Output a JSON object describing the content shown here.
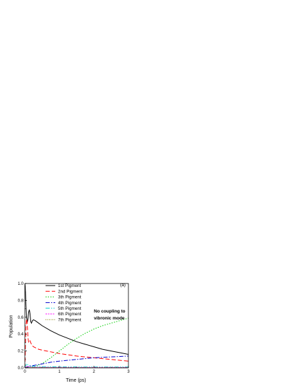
{
  "chart_data": {
    "type": "line",
    "xlabel": "Time (ps)",
    "ylabel": "Population",
    "xlim": [
      0,
      3
    ],
    "ylim": [
      0,
      1.0
    ],
    "xticks": [
      "0",
      "1",
      "2",
      "3"
    ],
    "yticks": [
      "0.0",
      "0.2",
      "0.4",
      "0.6",
      "0.8",
      "1.0"
    ],
    "panel_label": "(a)",
    "annotation": [
      "No coupling to",
      "vibronic mode"
    ],
    "legend_position": "top-center",
    "series": [
      {
        "name": "1st Pigment",
        "color": "#000000",
        "dash": "solid",
        "x": [
          0,
          0.01,
          0.02,
          0.03,
          0.05,
          0.07,
          0.09,
          0.11,
          0.13,
          0.15,
          0.17,
          0.19,
          0.22,
          0.25,
          0.3,
          0.4,
          0.5,
          0.75,
          1.0,
          1.25,
          1.5,
          1.75,
          2.0,
          2.25,
          2.5,
          2.75,
          3.0
        ],
        "y": [
          1.0,
          0.97,
          0.88,
          0.76,
          0.6,
          0.54,
          0.58,
          0.66,
          0.69,
          0.64,
          0.55,
          0.53,
          0.56,
          0.57,
          0.56,
          0.53,
          0.5,
          0.44,
          0.39,
          0.35,
          0.31,
          0.28,
          0.25,
          0.22,
          0.2,
          0.18,
          0.16
        ]
      },
      {
        "name": "2nd Pigment",
        "color": "#ff0000",
        "dash": "6,3",
        "x": [
          0,
          0.01,
          0.02,
          0.03,
          0.05,
          0.07,
          0.09,
          0.11,
          0.13,
          0.15,
          0.17,
          0.2,
          0.25,
          0.3,
          0.4,
          0.5,
          0.75,
          1.0,
          1.5,
          2.0,
          2.5,
          3.0
        ],
        "y": [
          0.0,
          0.15,
          0.32,
          0.48,
          0.58,
          0.52,
          0.36,
          0.3,
          0.3,
          0.32,
          0.3,
          0.27,
          0.25,
          0.24,
          0.22,
          0.21,
          0.19,
          0.17,
          0.14,
          0.12,
          0.1,
          0.08
        ]
      },
      {
        "name": "3th Pigment",
        "color": "#00cc00",
        "dash": "1.5,2",
        "x": [
          0,
          0.25,
          0.5,
          0.75,
          1.0,
          1.25,
          1.5,
          1.75,
          2.0,
          2.25,
          2.5,
          2.75,
          3.0
        ],
        "y": [
          0.0,
          0.01,
          0.05,
          0.12,
          0.2,
          0.28,
          0.35,
          0.41,
          0.46,
          0.5,
          0.53,
          0.56,
          0.59
        ]
      },
      {
        "name": "4th Pigment",
        "color": "#0000cc",
        "dash": "6,2,1.5,2",
        "x": [
          0,
          0.05,
          0.1,
          0.2,
          0.4,
          0.6,
          0.8,
          1.0,
          1.25,
          1.5,
          1.75,
          2.0,
          2.25,
          2.5,
          2.75,
          3.0
        ],
        "y": [
          0.0,
          0.005,
          0.015,
          0.025,
          0.04,
          0.055,
          0.07,
          0.08,
          0.09,
          0.1,
          0.11,
          0.12,
          0.125,
          0.13,
          0.135,
          0.14
        ]
      },
      {
        "name": "5th Pigment",
        "color": "#00cccc",
        "dash": "6,2,1.5,2,1.5,2",
        "x": [
          0,
          0.05,
          0.1,
          0.2,
          0.5,
          1.0,
          2.0,
          3.0
        ],
        "y": [
          0.0,
          0.05,
          0.03,
          0.02,
          0.015,
          0.012,
          0.01,
          0.01
        ]
      },
      {
        "name": "6th Pigment",
        "color": "#ff00ff",
        "dash": "2,1.5",
        "x": [
          0,
          0.05,
          0.1,
          0.2,
          0.5,
          1.0,
          2.0,
          3.0
        ],
        "y": [
          0.0,
          0.02,
          0.012,
          0.008,
          0.006,
          0.005,
          0.005,
          0.005
        ]
      },
      {
        "name": "7th Pigment",
        "color": "#808000",
        "dash": "1,1.5",
        "x": [
          0,
          0.05,
          0.1,
          0.2,
          0.5,
          1.0,
          2.0,
          3.0
        ],
        "y": [
          0.0,
          0.01,
          0.007,
          0.005,
          0.004,
          0.003,
          0.003,
          0.003
        ]
      }
    ]
  }
}
